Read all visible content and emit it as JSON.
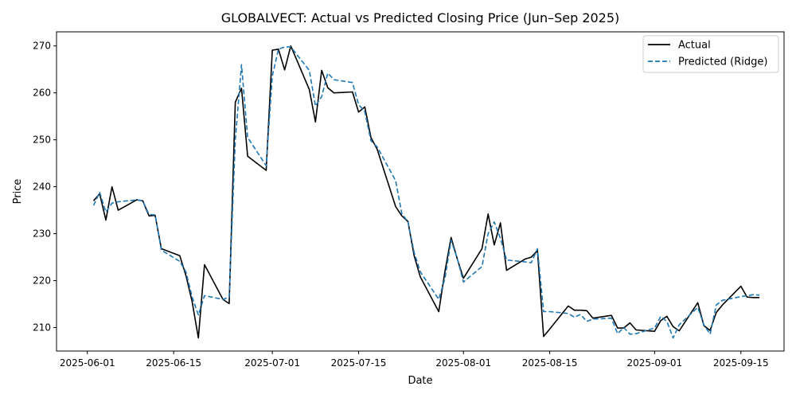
{
  "chart_data": {
    "type": "line",
    "title": "GLOBALVECT: Actual vs Predicted Closing Price (Jun–Sep 2025)",
    "xlabel": "Date",
    "ylabel": "Price",
    "xlim": [
      "2025-05-27",
      "2025-09-22"
    ],
    "ylim": [
      205,
      273
    ],
    "x_ticks": [
      "2025-06-01",
      "2025-06-15",
      "2025-07-01",
      "2025-07-15",
      "2025-08-01",
      "2025-08-15",
      "2025-09-01",
      "2025-09-15"
    ],
    "y_ticks": [
      210,
      220,
      230,
      240,
      250,
      260,
      270
    ],
    "grid": false,
    "legend": "top-right",
    "x": [
      "2025-06-02",
      "2025-06-03",
      "2025-06-04",
      "2025-06-05",
      "2025-06-06",
      "2025-06-09",
      "2025-06-10",
      "2025-06-11",
      "2025-06-12",
      "2025-06-13",
      "2025-06-16",
      "2025-06-17",
      "2025-06-18",
      "2025-06-19",
      "2025-06-20",
      "2025-06-23",
      "2025-06-24",
      "2025-06-25",
      "2025-06-26",
      "2025-06-27",
      "2025-06-30",
      "2025-07-01",
      "2025-07-02",
      "2025-07-03",
      "2025-07-04",
      "2025-07-07",
      "2025-07-08",
      "2025-07-09",
      "2025-07-10",
      "2025-07-11",
      "2025-07-14",
      "2025-07-15",
      "2025-07-16",
      "2025-07-17",
      "2025-07-18",
      "2025-07-21",
      "2025-07-22",
      "2025-07-23",
      "2025-07-24",
      "2025-07-25",
      "2025-07-28",
      "2025-07-29",
      "2025-07-30",
      "2025-07-31",
      "2025-08-01",
      "2025-08-04",
      "2025-08-05",
      "2025-08-06",
      "2025-08-07",
      "2025-08-08",
      "2025-08-11",
      "2025-08-12",
      "2025-08-13",
      "2025-08-14",
      "2025-08-15",
      "2025-08-18",
      "2025-08-19",
      "2025-08-20",
      "2025-08-21",
      "2025-08-22",
      "2025-08-25",
      "2025-08-26",
      "2025-08-27",
      "2025-08-28",
      "2025-08-29",
      "2025-09-01",
      "2025-09-02",
      "2025-09-03",
      "2025-09-04",
      "2025-09-05",
      "2025-09-08",
      "2025-09-09",
      "2025-09-10",
      "2025-09-11",
      "2025-09-12",
      "2025-09-15",
      "2025-09-16",
      "2025-09-17",
      "2025-09-18"
    ],
    "series": [
      {
        "name": "Actual",
        "color": "#000000",
        "dash": "solid",
        "values": [
          237.0,
          238.5,
          232.9,
          240.0,
          235.0,
          237.2,
          237.0,
          233.8,
          233.9,
          226.8,
          225.3,
          221.0,
          215.5,
          207.8,
          223.4,
          216.0,
          215.1,
          258.0,
          261.0,
          246.5,
          243.5,
          269.1,
          269.3,
          264.9,
          270.0,
          260.7,
          253.8,
          264.8,
          261.1,
          260.0,
          260.2,
          255.9,
          257.0,
          250.5,
          248.0,
          235.8,
          233.8,
          232.6,
          225.3,
          220.8,
          213.4,
          222.0,
          229.2,
          224.6,
          220.5,
          226.8,
          234.2,
          227.6,
          232.3,
          222.2,
          224.6,
          225.0,
          226.4,
          208.1,
          209.7,
          214.6,
          213.7,
          213.7,
          213.6,
          212.0,
          212.6,
          209.9,
          209.9,
          211.0,
          209.5,
          209.2,
          211.5,
          212.4,
          210.2,
          209.3,
          215.3,
          210.4,
          209.4,
          213.2,
          214.8,
          218.8,
          216.5,
          216.4,
          216.4
        ]
      },
      {
        "name": "Predicted (Ridge)",
        "color": "#1f77b4",
        "dash": "dashed",
        "values": [
          236.0,
          238.8,
          234.6,
          236.5,
          236.8,
          237.2,
          237.0,
          234.1,
          234.0,
          226.5,
          224.1,
          221.8,
          216.5,
          212.7,
          216.8,
          216.0,
          216.5,
          250.0,
          266.0,
          250.5,
          244.5,
          263.6,
          269.3,
          269.8,
          269.8,
          264.8,
          257.2,
          259.2,
          264.2,
          262.8,
          262.2,
          257.5,
          256.0,
          249.8,
          248.5,
          241.3,
          234.3,
          232.5,
          226.0,
          221.9,
          216.0,
          220.5,
          228.6,
          224.7,
          219.7,
          223.0,
          230.0,
          232.5,
          229.0,
          224.4,
          224.0,
          223.8,
          226.8,
          213.4,
          213.4,
          213.0,
          212.2,
          212.8,
          211.3,
          211.8,
          212.0,
          208.7,
          210.0,
          208.6,
          208.7,
          209.9,
          212.4,
          211.3,
          207.8,
          210.6,
          214.3,
          210.6,
          208.6,
          214.8,
          215.8,
          216.6,
          216.8,
          217.0,
          216.9
        ]
      }
    ]
  }
}
